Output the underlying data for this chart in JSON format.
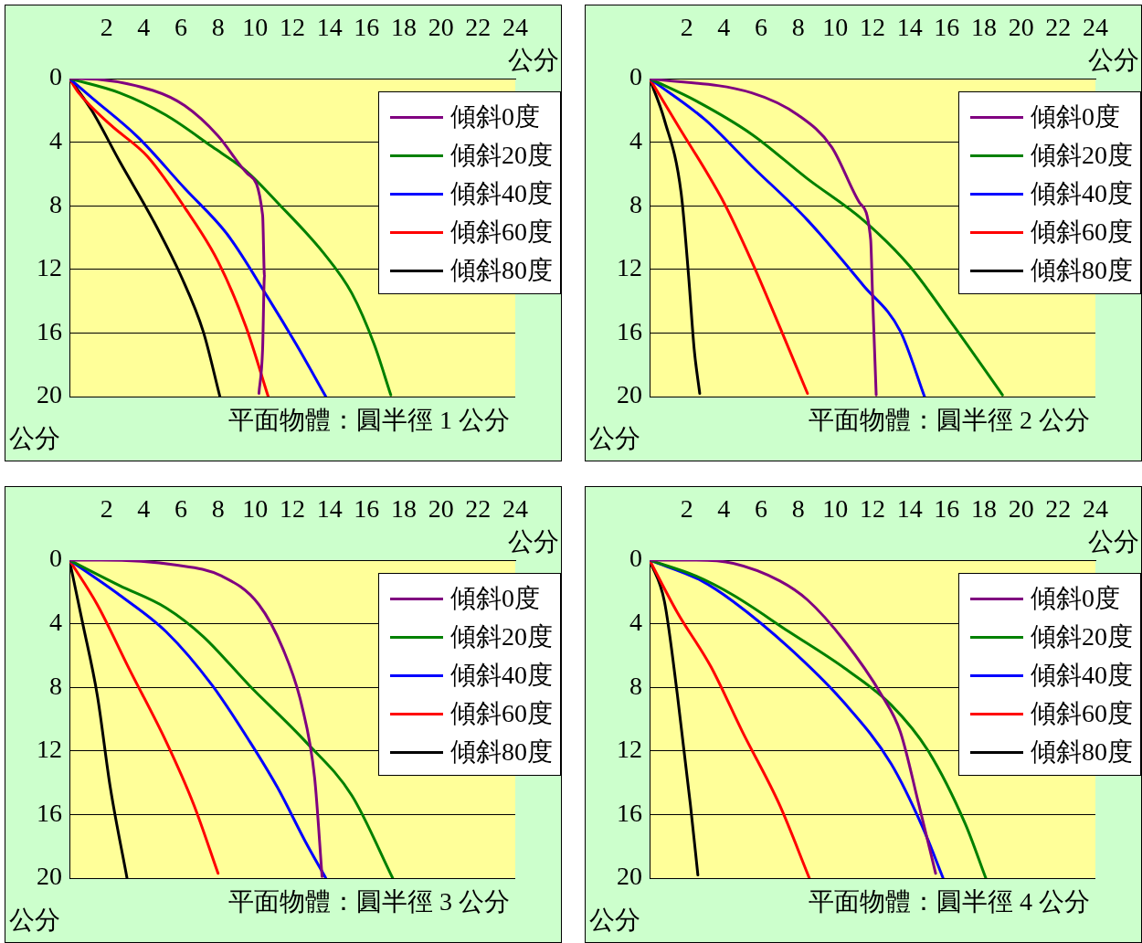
{
  "chart_data": [
    {
      "type": "line",
      "title": "平面物體：圓半徑 1 公分",
      "xlabel": "公分",
      "ylabel": "公分",
      "xlim": [
        0,
        24
      ],
      "xticks": [
        2,
        4,
        6,
        8,
        10,
        12,
        14,
        16,
        18,
        20,
        22,
        24
      ],
      "ylim": [
        20,
        0
      ],
      "yticks": [
        0,
        4,
        8,
        12,
        16,
        20
      ],
      "grid": "y",
      "legend": "top right",
      "marker": "none",
      "line_style": "solid",
      "series": [
        {
          "name": "傾斜0度",
          "color": "#800080",
          "x": [
            0,
            0.5,
            4.5,
            6.2,
            8,
            9.6,
            10.4,
            10.5,
            10.4,
            10.2
          ],
          "values": [
            0,
            0,
            0.75,
            1.7,
            3.6,
            6,
            8.6,
            12.4,
            17,
            19.8
          ]
        },
        {
          "name": "傾斜20度",
          "color": "#008000",
          "x": [
            0,
            2.7,
            5.2,
            7.7,
            9.5,
            11.2,
            13.7,
            15.2,
            16.4,
            17.3
          ],
          "values": [
            0,
            0.9,
            2.3,
            4.3,
            5.8,
            7.8,
            11,
            13.5,
            16.7,
            19.9
          ]
        },
        {
          "name": "傾斜40度",
          "color": "#0000ff",
          "x": [
            0,
            1.2,
            3.7,
            6.2,
            8.5,
            10.7,
            12.2,
            13.8
          ],
          "values": [
            0,
            1.2,
            3.7,
            6.9,
            9.8,
            13.8,
            16.7,
            20
          ]
        },
        {
          "name": "傾斜60度",
          "color": "#ff0000",
          "x": [
            0,
            0.5,
            2.2,
            4.2,
            6.2,
            8,
            9.5,
            10.7
          ],
          "values": [
            0,
            0.9,
            2.9,
            4.9,
            8.1,
            11.5,
            15.6,
            20
          ]
        },
        {
          "name": "傾斜80度",
          "color": "#000000",
          "x": [
            0,
            1.2,
            2.7,
            4.5,
            6,
            7.2,
            8.1
          ],
          "values": [
            0,
            2,
            5.2,
            8.9,
            12.4,
            15.9,
            20
          ]
        }
      ]
    },
    {
      "type": "line",
      "title": "平面物體：圓半徑 2 公分",
      "xlabel": "公分",
      "ylabel": "公分",
      "xlim": [
        0,
        24
      ],
      "xticks": [
        2,
        4,
        6,
        8,
        10,
        12,
        14,
        16,
        18,
        20,
        22,
        24
      ],
      "ylim": [
        20,
        0
      ],
      "yticks": [
        0,
        4,
        8,
        12,
        16,
        20
      ],
      "grid": "y",
      "legend": "top right",
      "marker": "none",
      "line_style": "solid",
      "series": [
        {
          "name": "傾斜0度",
          "color": "#800080",
          "x": [
            0,
            5.5,
            8,
            9.8,
            11.3,
            11.9,
            12,
            12.2
          ],
          "values": [
            0,
            0.9,
            2.3,
            4.3,
            7.8,
            10.1,
            13.5,
            19.9
          ]
        },
        {
          "name": "傾斜20度",
          "color": "#008000",
          "x": [
            0,
            2.5,
            5.5,
            8.5,
            11.5,
            14,
            16.4,
            19
          ],
          "values": [
            0,
            1.4,
            3.5,
            6.3,
            8.9,
            11.8,
            15.6,
            19.9
          ]
        },
        {
          "name": "傾斜40度",
          "color": "#0000ff",
          "x": [
            0,
            3,
            5.5,
            8.5,
            11.5,
            13.5,
            14.8
          ],
          "values": [
            0,
            2.6,
            5.5,
            8.9,
            13,
            15.9,
            20
          ]
        },
        {
          "name": "傾斜60度",
          "color": "#ff0000",
          "x": [
            0,
            1.5,
            4,
            5.5,
            7,
            8.5
          ],
          "values": [
            0,
            2.9,
            7.8,
            11.5,
            15.6,
            19.8
          ]
        },
        {
          "name": "傾斜80度",
          "color": "#000000",
          "x": [
            0,
            0.8,
            1.7,
            2.1,
            2.4,
            2.7
          ],
          "values": [
            0,
            2.6,
            7.2,
            12.4,
            17,
            19.8
          ]
        }
      ]
    },
    {
      "type": "line",
      "title": "平面物體：圓半徑 3 公分",
      "xlabel": "公分",
      "ylabel": "公分",
      "xlim": [
        0,
        24
      ],
      "xticks": [
        2,
        4,
        6,
        8,
        10,
        12,
        14,
        16,
        18,
        20,
        22,
        24
      ],
      "ylim": [
        20,
        0
      ],
      "yticks": [
        0,
        4,
        8,
        12,
        16,
        20
      ],
      "grid": "y",
      "legend": "top right",
      "marker": "none",
      "line_style": "solid",
      "series": [
        {
          "name": "傾斜0度",
          "color": "#800080",
          "x": [
            0,
            1.7,
            5.7,
            8.2,
            10.2,
            11.5,
            12.5,
            13.2,
            13.6
          ],
          "values": [
            0,
            0,
            0.3,
            1,
            2.8,
            5.6,
            9.1,
            13.7,
            19.9
          ]
        },
        {
          "name": "傾斜20度",
          "color": "#008000",
          "x": [
            0,
            2.7,
            5.2,
            7.2,
            9.7,
            12.7,
            15.2,
            17.4
          ],
          "values": [
            0,
            1.6,
            3,
            4.8,
            7.9,
            11.4,
            14.8,
            20
          ]
        },
        {
          "name": "傾斜40度",
          "color": "#0000ff",
          "x": [
            0,
            2.7,
            5.2,
            7.7,
            9.7,
            11.2,
            12.7,
            13.8
          ],
          "values": [
            0,
            2.2,
            4.5,
            7.9,
            11.4,
            14.3,
            17.7,
            20
          ]
        },
        {
          "name": "傾斜60度",
          "color": "#ff0000",
          "x": [
            0,
            1.5,
            3.2,
            5.2,
            6.7,
            8
          ],
          "values": [
            0,
            2.8,
            6.8,
            11.4,
            15.4,
            19.7
          ]
        },
        {
          "name": "傾斜80度",
          "color": "#000000",
          "x": [
            0,
            0.7,
            1.5,
            2.2,
            3.1
          ],
          "values": [
            0,
            3.9,
            8.5,
            14.3,
            20
          ]
        }
      ]
    },
    {
      "type": "line",
      "title": "平面物體：圓半徑 4 公分",
      "xlabel": "公分",
      "ylabel": "公分",
      "xlim": [
        0,
        24
      ],
      "xticks": [
        2,
        4,
        6,
        8,
        10,
        12,
        14,
        16,
        18,
        20,
        22,
        24
      ],
      "ylim": [
        20,
        0
      ],
      "yticks": [
        0,
        4,
        8,
        12,
        16,
        20
      ],
      "grid": "y",
      "legend": "top right",
      "marker": "none",
      "line_style": "solid",
      "series": [
        {
          "name": "傾斜0度",
          "color": "#800080",
          "x": [
            0,
            2.5,
            4.5,
            7,
            8.5,
            10.5,
            12.5,
            13.5,
            14.5,
            15.4
          ],
          "values": [
            0,
            0,
            0.2,
            1.3,
            2.5,
            5.1,
            8.5,
            10.8,
            15.4,
            19.7
          ]
        },
        {
          "name": "傾斜20度",
          "color": "#008000",
          "x": [
            0,
            2.5,
            4.5,
            7.5,
            10.5,
            13,
            15,
            17,
            18.1
          ],
          "values": [
            0,
            1,
            2.2,
            4.5,
            6.8,
            9.1,
            12,
            16.6,
            20
          ]
        },
        {
          "name": "傾斜40度",
          "color": "#0000ff",
          "x": [
            0,
            2.8,
            4.5,
            7.5,
            10.5,
            13,
            14.7,
            15.8
          ],
          "values": [
            0,
            1.3,
            2.6,
            5.5,
            9,
            12.8,
            16.8,
            20
          ]
        },
        {
          "name": "傾斜60度",
          "color": "#ff0000",
          "x": [
            0,
            1.5,
            3.3,
            5,
            7,
            8.6
          ],
          "values": [
            0,
            3.3,
            6.7,
            10.8,
            15.4,
            20
          ]
        },
        {
          "name": "傾斜80度",
          "color": "#000000",
          "x": [
            0,
            0.8,
            1.5,
            2.2,
            2.6
          ],
          "values": [
            0,
            2.6,
            8.5,
            15.4,
            19.8
          ]
        }
      ]
    }
  ]
}
